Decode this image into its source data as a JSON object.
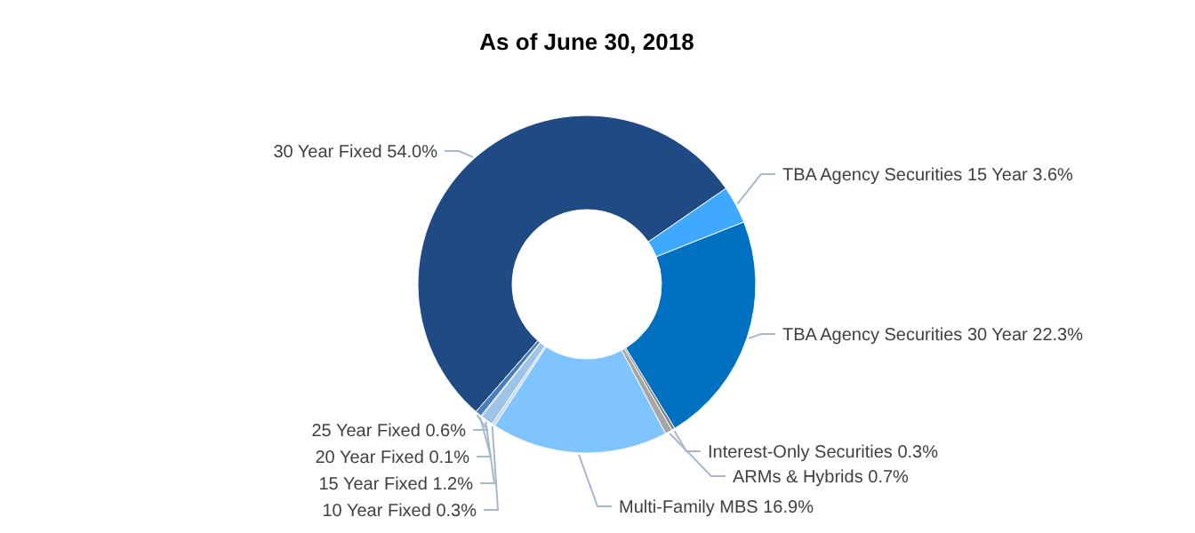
{
  "chart_data": {
    "type": "donut",
    "title": "As of June 30, 2018",
    "categories": [
      "30 Year Fixed",
      "TBA Agency Securities 15 Year",
      "TBA Agency Securities 30 Year",
      "Interest-Only Securities",
      "ARMs & Hybrids",
      "Multi-Family MBS",
      "10 Year Fixed",
      "15 Year Fixed",
      "20 Year Fixed",
      "25 Year Fixed"
    ],
    "values": [
      54.0,
      3.6,
      22.3,
      0.3,
      0.7,
      16.9,
      0.3,
      1.2,
      0.1,
      0.6
    ],
    "colors": [
      "#1f4a84",
      "#3fa9ff",
      "#0070c0",
      "#7f7f7f",
      "#a6a6a6",
      "#80c4ff",
      "#bdd7ee",
      "#9dc3e6",
      "#2e75b6",
      "#4a7ebb"
    ],
    "value_labels": [
      "54.0%",
      "3.6%",
      "22.3%",
      "0.3%",
      "0.7%",
      "16.9%",
      "0.3%",
      "1.2%",
      "0.1%",
      "0.6%"
    ]
  }
}
